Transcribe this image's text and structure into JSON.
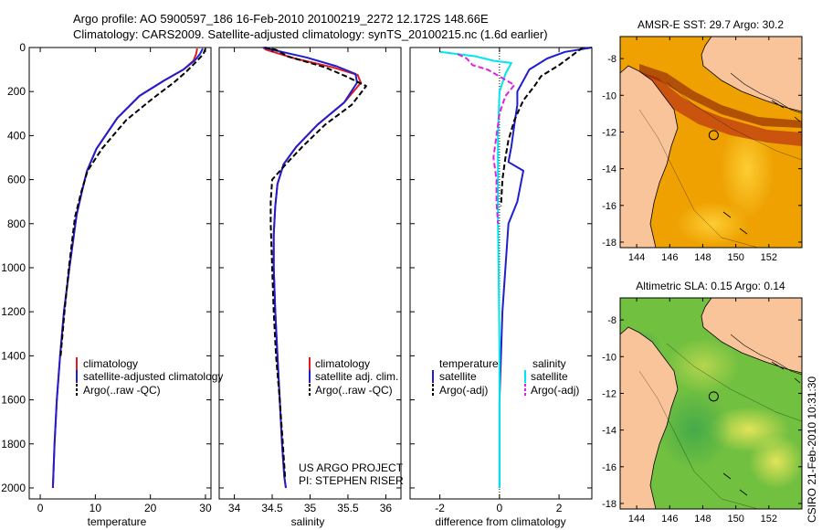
{
  "title_line1": "Argo profile: AO 5900597_186 16-Feb-2010 20100219_2272 12.172S 148.66E",
  "title_line2": "Climatology: CARS2009. Satellite-adjusted climatology: synTS_20100215.nc (1.6d earlier)",
  "side_label": "CSIRO 21-Feb-2010 10:31:30",
  "credit": [
    "US ARGO PROJECT",
    "PI: STEPHEN RISER"
  ],
  "colors": {
    "red": "#e41a1c",
    "blue": "#1f1fd0",
    "black": "#000000",
    "cyan": "#00e5ee",
    "magenta": "#e020e0"
  },
  "chart_data": [
    {
      "type": "line",
      "xlabel": "temperature",
      "xlim": [
        -2,
        31
      ],
      "xticks": [
        "0",
        "10",
        "20",
        "30"
      ],
      "xtick_values": [
        0,
        10,
        20,
        30
      ],
      "ylim": [
        0,
        2050
      ],
      "yticks": [
        "0",
        "200",
        "400",
        "600",
        "800",
        "1000",
        "1200",
        "1400",
        "1600",
        "1800",
        "2000"
      ],
      "ytick_values": [
        0,
        200,
        400,
        600,
        800,
        1000,
        1200,
        1400,
        1600,
        1800,
        2000
      ],
      "legend": [
        "climatology",
        "satellite-adjusted climatology",
        "Argo(..raw -QC)"
      ],
      "series": [
        {
          "name": "climatology",
          "color": "red",
          "dash": false,
          "x": [
            28.5,
            28.3,
            27.8,
            26,
            22.5,
            18,
            14,
            10.2,
            8.5,
            7.6,
            6.6,
            5.3,
            4.3,
            3.6,
            3.0,
            2.6,
            2.3
          ],
          "y": [
            5,
            30,
            60,
            100,
            150,
            220,
            320,
            460,
            560,
            650,
            760,
            1000,
            1200,
            1400,
            1600,
            1800,
            2000
          ]
        },
        {
          "name": "satellite-adjusted climatology",
          "color": "blue",
          "dash": false,
          "x": [
            29.5,
            29.0,
            28.0,
            26,
            22.5,
            18,
            14,
            10.2,
            8.5,
            7.6,
            6.6,
            5.3,
            4.3,
            3.6,
            3.0,
            2.6,
            2.3
          ],
          "y": [
            5,
            30,
            60,
            100,
            150,
            220,
            320,
            460,
            560,
            650,
            760,
            1000,
            1200,
            1400,
            1600,
            1800,
            2000
          ]
        },
        {
          "name": "Argo(..raw -QC)",
          "color": "black",
          "dash": true,
          "x": [
            30.0,
            29.6,
            28.5,
            26.5,
            24.2,
            20.5,
            15.6,
            11.2,
            8.6,
            7.4,
            6.3,
            5.2,
            4.4,
            3.7
          ],
          "y": [
            5,
            30,
            60,
            110,
            160,
            230,
            330,
            460,
            560,
            660,
            770,
            1000,
            1200,
            1400
          ]
        }
      ]
    },
    {
      "type": "line",
      "xlabel": "salinity",
      "xlim": [
        33.8,
        36.2
      ],
      "xticks": [
        "34",
        "34.5",
        "35",
        "35.5",
        "36"
      ],
      "xtick_values": [
        34,
        34.5,
        35,
        35.5,
        36
      ],
      "ylim": [
        0,
        2050
      ],
      "legend": [
        "climatology",
        "satellite adj. clim.",
        "Argo(..raw -QC)"
      ],
      "series": [
        {
          "name": "climatology",
          "color": "red",
          "dash": false,
          "x": [
            34.38,
            34.42,
            34.8,
            35.3,
            35.63,
            35.67,
            35.45,
            35.1,
            34.82,
            34.65,
            34.57,
            34.54,
            34.52,
            34.52,
            34.54,
            34.57,
            34.6,
            34.63,
            34.66,
            34.68
          ],
          "y": [
            0,
            10,
            50,
            90,
            125,
            160,
            250,
            350,
            450,
            530,
            620,
            720,
            850,
            1000,
            1200,
            1400,
            1600,
            1800,
            1950,
            2000
          ]
        },
        {
          "name": "satellite adj. clim.",
          "color": "blue",
          "dash": false,
          "x": [
            34.38,
            34.5,
            34.95,
            35.35,
            35.6,
            35.62,
            35.45,
            35.1,
            34.82,
            34.65,
            34.57,
            34.54,
            34.52,
            34.52,
            34.54,
            34.57,
            34.6,
            34.63,
            34.66,
            34.68
          ],
          "y": [
            0,
            10,
            45,
            85,
            120,
            160,
            250,
            350,
            450,
            530,
            620,
            720,
            850,
            1000,
            1200,
            1400,
            1600,
            1800,
            1950,
            2000
          ]
        },
        {
          "name": "Argo(..raw -QC)",
          "color": "black",
          "dash": true,
          "x": [
            34.4,
            34.55,
            34.7,
            35.2,
            35.5,
            35.74,
            35.55,
            35.2,
            34.9,
            34.68,
            34.5,
            34.48,
            34.48,
            34.5,
            34.52,
            34.55,
            34.6,
            34.64,
            34.67
          ],
          "y": [
            0,
            10,
            40,
            90,
            135,
            175,
            260,
            350,
            450,
            530,
            600,
            700,
            800,
            1000,
            1200,
            1400,
            1600,
            1800,
            1950
          ]
        }
      ]
    },
    {
      "type": "line",
      "xlabel": "difference from climatology",
      "xlim": [
        -3,
        3.1
      ],
      "xticks": [
        "-2",
        "0",
        "2"
      ],
      "xtick_values": [
        -2,
        0,
        2
      ],
      "ylim": [
        0,
        2050
      ],
      "legend_headers": [
        "temperature",
        "salinity"
      ],
      "legend": [
        "satellite",
        "Argo(-adj)",
        "satellite",
        "Argo(-adj)"
      ],
      "series": [
        {
          "name": "temperature satellite",
          "color": "blue",
          "dash": false,
          "x": [
            3.1,
            2.2,
            1.6,
            1.0,
            0.8,
            0.6,
            0.6,
            0.5,
            0.4,
            0.3,
            0.8,
            0.6,
            0.3,
            0.2,
            0.1,
            0.05,
            0.0,
            0.0,
            0.0
          ],
          "y": [
            0,
            20,
            50,
            100,
            150,
            200,
            260,
            350,
            450,
            520,
            560,
            700,
            800,
            1000,
            1200,
            1400,
            1600,
            1800,
            2000
          ]
        },
        {
          "name": "temperature Argo(-adj)",
          "color": "black",
          "dash": true,
          "x": [
            2.8,
            2.5,
            2.0,
            1.4,
            1.2,
            0.8,
            0.5,
            0.3,
            0.2,
            0.1,
            0.05
          ],
          "y": [
            0,
            30,
            80,
            130,
            170,
            240,
            330,
            420,
            500,
            600,
            720
          ]
        },
        {
          "name": "salinity satellite",
          "color": "cyan",
          "dash": false,
          "x": [
            -2.0,
            -0.8,
            -0.2,
            0.4,
            0.2,
            0.0,
            -0.05,
            -0.05,
            -0.05,
            -0.03,
            0.0,
            0.0,
            0.0
          ],
          "y": [
            20,
            40,
            60,
            70,
            120,
            200,
            400,
            600,
            800,
            1000,
            1400,
            1800,
            2000
          ]
        },
        {
          "name": "salinity Argo(-adj)",
          "color": "magenta",
          "dash": true,
          "x": [
            -1.4,
            -1.1,
            -0.9,
            -0.4,
            0.5,
            0.2,
            0.0,
            -0.2,
            -0.1,
            -0.1,
            -0.05
          ],
          "y": [
            30,
            50,
            80,
            100,
            170,
            220,
            300,
            500,
            600,
            700,
            800
          ]
        }
      ]
    },
    {
      "type": "heatmap",
      "title": "AMSR-E SST: 29.7 Argo: 30.2",
      "xticks": [
        "144",
        "146",
        "148",
        "150",
        "152"
      ],
      "xtick_values": [
        144,
        146,
        148,
        150,
        152
      ],
      "yticks": [
        "-8",
        "-10",
        "-12",
        "-14",
        "-16",
        "-18"
      ],
      "ytick_values": [
        -8,
        -10,
        -12,
        -14,
        -16,
        -18
      ],
      "xlim": [
        143,
        154
      ],
      "ylim": [
        -18.3,
        -6.8
      ],
      "marker": {
        "lon": 148.66,
        "lat": -12.17
      }
    },
    {
      "type": "heatmap",
      "title": "Altimetric SLA: 0.15 Argo: 0.14",
      "xticks": [
        "144",
        "146",
        "148",
        "150",
        "152"
      ],
      "xtick_values": [
        144,
        146,
        148,
        150,
        152
      ],
      "yticks": [
        "-8",
        "-10",
        "-12",
        "-14",
        "-16",
        "-18"
      ],
      "ytick_values": [
        -8,
        -10,
        -12,
        -14,
        -16,
        -18
      ],
      "xlim": [
        143,
        154
      ],
      "ylim": [
        -18.3,
        -6.8
      ],
      "marker": {
        "lon": 148.66,
        "lat": -12.17
      }
    }
  ]
}
